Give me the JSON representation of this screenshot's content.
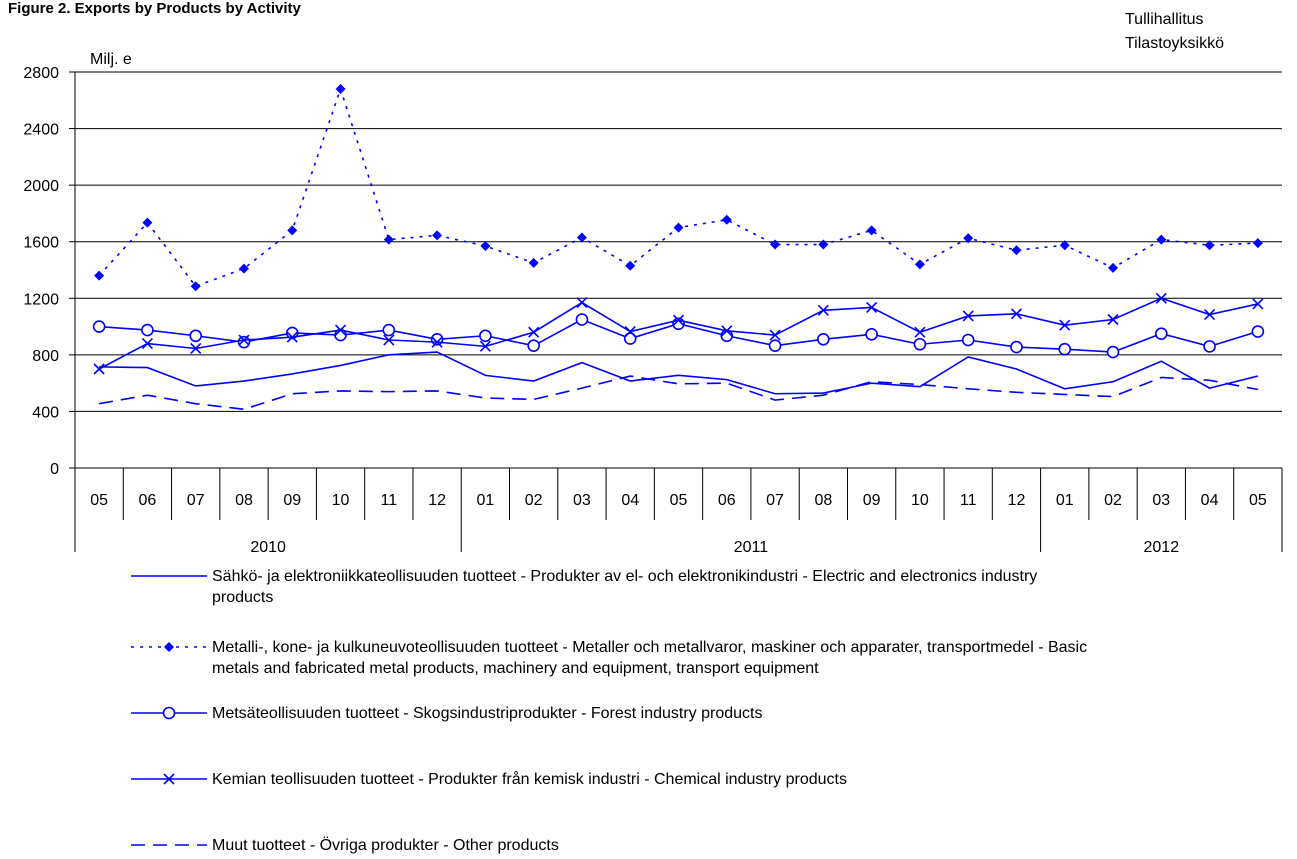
{
  "figure": {
    "title": "Figure 2. Exports by Products by Activity",
    "source_line1": "Tullihallitus",
    "source_line2": "Tilastoyksikkö"
  },
  "chart_data": {
    "type": "line",
    "title": "Figure 2. Exports by Products by Activity",
    "ylabel": "Milj. e",
    "ylim": [
      0,
      2800
    ],
    "yticks": [
      0,
      400,
      800,
      1200,
      1600,
      2000,
      2400,
      2800
    ],
    "grid": true,
    "legend_position": "bottom",
    "categories": [
      "05",
      "06",
      "07",
      "08",
      "09",
      "10",
      "11",
      "12",
      "01",
      "02",
      "03",
      "04",
      "05",
      "06",
      "07",
      "08",
      "09",
      "10",
      "11",
      "12",
      "01",
      "02",
      "03",
      "04",
      "05"
    ],
    "years": [
      {
        "label": "2010",
        "count": 8
      },
      {
        "label": "2011",
        "count": 12
      },
      {
        "label": "2012",
        "count": 5
      }
    ],
    "series": [
      {
        "name": "Sähkö- ja elektroniikkateollisuuden tuotteet - Produkter av el- och elektronikindustri - Electric and electronics industry products",
        "style": "solid",
        "marker": "none",
        "color": "#0000ff",
        "values": [
          715,
          710,
          580,
          615,
          665,
          725,
          800,
          820,
          655,
          615,
          745,
          615,
          655,
          625,
          525,
          530,
          600,
          575,
          785,
          700,
          560,
          610,
          755,
          565,
          650
        ]
      },
      {
        "name": "Metalli-, kone- ja kulkuneuvoteollisuuden tuotteet - Metaller och metallvaror, maskiner och apparater, transportmedel - Basic metals and fabricated metal products, machinery and equipment, transport equipment",
        "style": "dotted",
        "marker": "diamond",
        "color": "#0000ff",
        "values": [
          1360,
          1735,
          1285,
          1410,
          1680,
          2680,
          1615,
          1645,
          1570,
          1450,
          1630,
          1430,
          1700,
          1755,
          1580,
          1580,
          1680,
          1440,
          1625,
          1540,
          1575,
          1415,
          1615,
          1575,
          1590
        ]
      },
      {
        "name": "Metsäteollisuuden tuotteet - Skogsindustriprodukter - Forest industry products",
        "style": "solid",
        "marker": "circle",
        "color": "#0000ff",
        "values": [
          1000,
          975,
          935,
          890,
          955,
          940,
          975,
          910,
          935,
          865,
          1050,
          915,
          1020,
          935,
          865,
          910,
          945,
          875,
          905,
          855,
          840,
          820,
          950,
          860,
          965
        ]
      },
      {
        "name": "Kemian teollisuuden tuotteet - Produkter från kemisk industri - Chemical industry products",
        "style": "solid",
        "marker": "x",
        "color": "#0000ff",
        "values": [
          700,
          880,
          845,
          905,
          925,
          975,
          905,
          890,
          860,
          960,
          1170,
          965,
          1045,
          970,
          940,
          1115,
          1135,
          960,
          1075,
          1090,
          1010,
          1050,
          1200,
          1085,
          1160
        ]
      },
      {
        "name": "Muut tuotteet - Övriga produkter - Other products",
        "style": "dashed",
        "marker": "none",
        "color": "#0000ff",
        "values": [
          455,
          515,
          455,
          415,
          525,
          545,
          540,
          545,
          495,
          485,
          565,
          650,
          595,
          600,
          480,
          515,
          610,
          590,
          560,
          535,
          520,
          505,
          640,
          620,
          555
        ]
      }
    ]
  }
}
